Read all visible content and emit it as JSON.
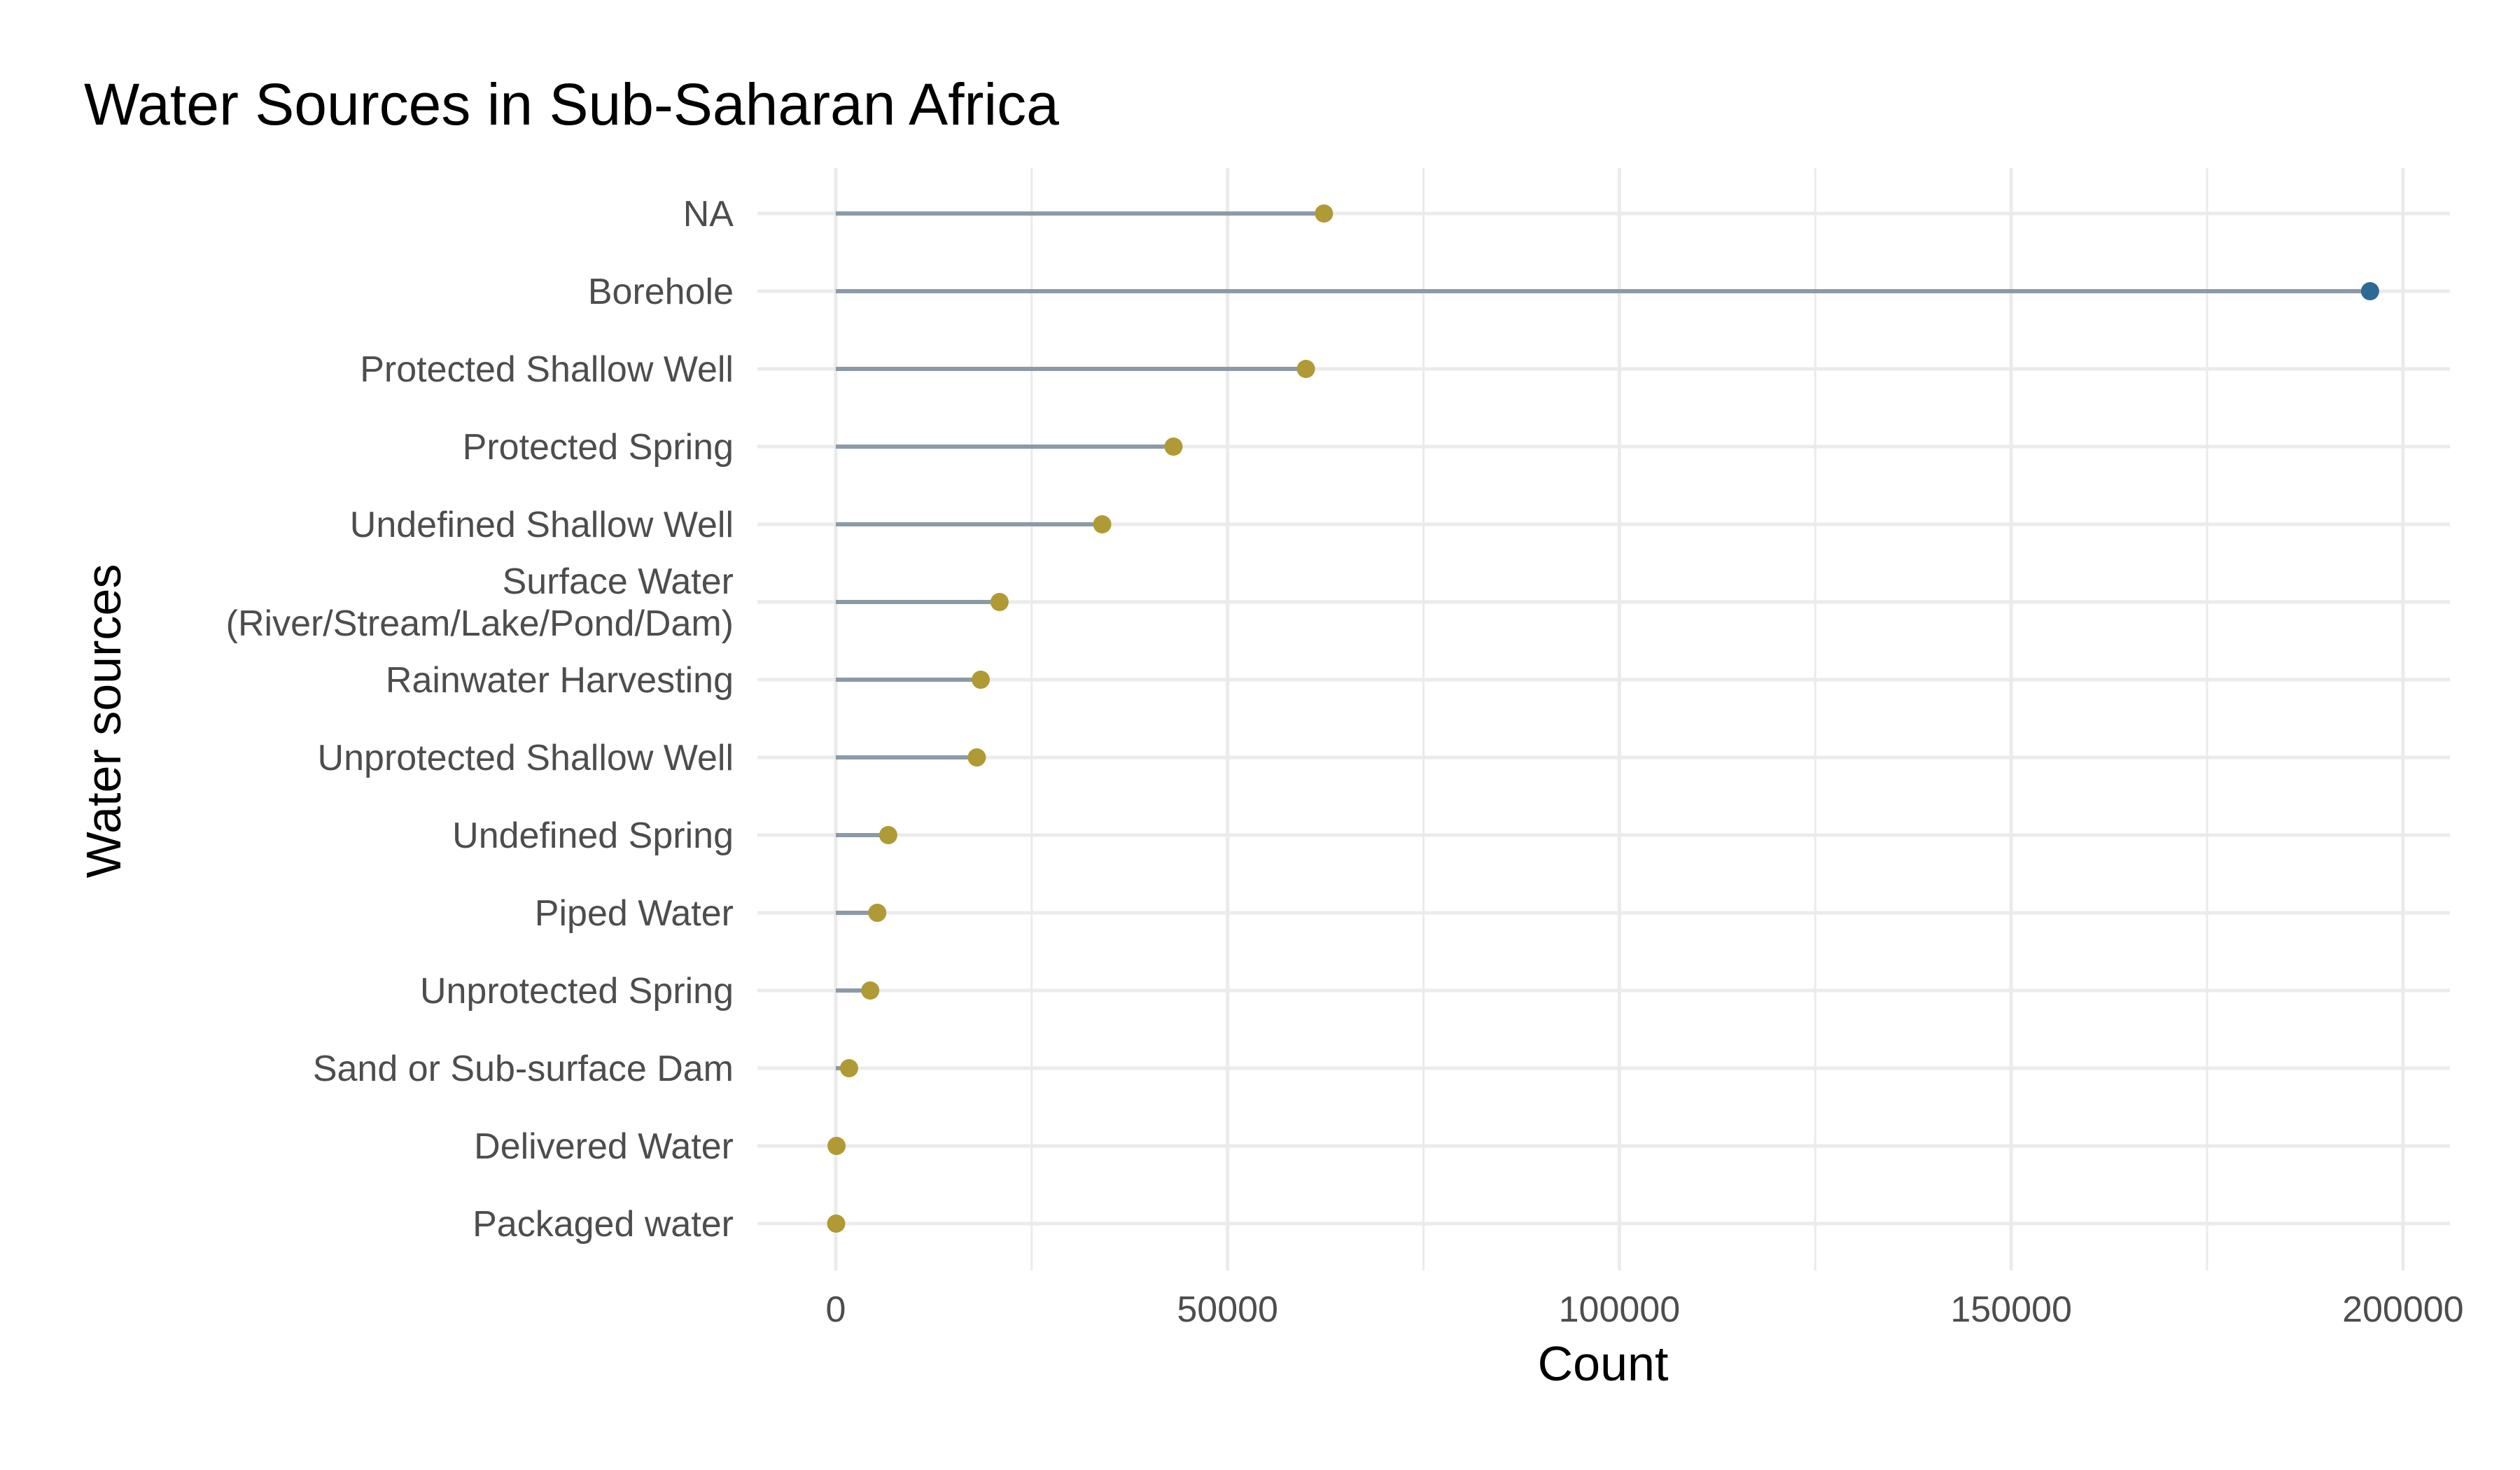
{
  "chart_data": {
    "type": "lollipop",
    "title": "Water Sources in Sub-Saharan Africa",
    "xlabel": "Count",
    "ylabel": "Water sources",
    "xlim": [
      -10000,
      206000
    ],
    "x_ticks": [
      0,
      50000,
      100000,
      150000,
      200000
    ],
    "x_minor_ticks": [
      25000,
      75000,
      125000,
      175000
    ],
    "grid": true,
    "colors": {
      "stem": "#8c9aa8",
      "point_default": "#b09a35",
      "point_highlight": "#2d6a93",
      "grid": "#ebebeb",
      "tick_text": "#4d4d4d"
    },
    "categories": [
      [
        "NA"
      ],
      [
        "Borehole"
      ],
      [
        "Protected Shallow Well"
      ],
      [
        "Protected Spring"
      ],
      [
        "Undefined Shallow Well"
      ],
      [
        "Surface Water",
        "(River/Stream/Lake/Pond/Dam)"
      ],
      [
        "Rainwater Harvesting"
      ],
      [
        "Unprotected Shallow Well"
      ],
      [
        "Undefined Spring"
      ],
      [
        "Piped Water"
      ],
      [
        "Unprotected Spring"
      ],
      [
        "Sand or Sub-surface Dam"
      ],
      [
        "Delivered Water"
      ],
      [
        "Packaged water"
      ]
    ],
    "values": [
      62300,
      195800,
      60000,
      43100,
      34000,
      20900,
      18500,
      18000,
      6700,
      5300,
      4400,
      1700,
      100,
      50
    ],
    "highlight": [
      false,
      true,
      false,
      false,
      false,
      false,
      false,
      false,
      false,
      false,
      false,
      false,
      false,
      false
    ]
  }
}
